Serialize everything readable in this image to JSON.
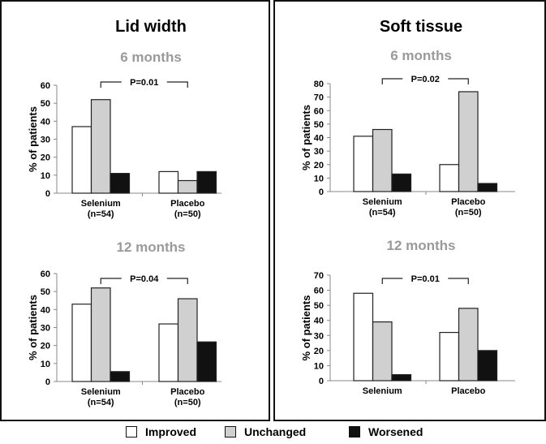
{
  "legend": [
    {
      "label": "Improved",
      "color": "#ffffff"
    },
    {
      "label": "Unchanged",
      "color": "#d0d0d0"
    },
    {
      "label": "Worsened",
      "color": "#111111"
    }
  ],
  "panels": [
    {
      "title": "Lid width",
      "charts": [
        0,
        1
      ]
    },
    {
      "title": "Soft tissue",
      "charts": [
        2,
        3
      ]
    }
  ],
  "chart_data": [
    {
      "type": "bar",
      "title": "6 months",
      "ylabel": "% of patients",
      "ylim": [
        0,
        60
      ],
      "yticks": [
        0,
        10,
        20,
        30,
        40,
        50,
        60
      ],
      "categories": [
        "Selenium\n(n=54)",
        "Placebo\n(n=50)"
      ],
      "annotation": "P=0.01",
      "series": [
        {
          "name": "Improved",
          "values": [
            37,
            12
          ]
        },
        {
          "name": "Unchanged",
          "values": [
            52,
            7
          ]
        },
        {
          "name": "Worsened",
          "values": [
            11,
            12
          ]
        }
      ]
    },
    {
      "type": "bar",
      "title": "12 months",
      "ylabel": "% of patients",
      "ylim": [
        0,
        60
      ],
      "yticks": [
        0,
        10,
        20,
        30,
        40,
        50,
        60
      ],
      "categories": [
        "Selenium\n(n=54)",
        "Placebo\n(n=50)"
      ],
      "annotation": "P=0.04",
      "series": [
        {
          "name": "Improved",
          "values": [
            43,
            32
          ]
        },
        {
          "name": "Unchanged",
          "values": [
            52,
            46
          ]
        },
        {
          "name": "Worsened",
          "values": [
            5.5,
            22
          ]
        }
      ]
    },
    {
      "type": "bar",
      "title": "6 months",
      "ylabel": "% of patients",
      "ylim": [
        0,
        80
      ],
      "yticks": [
        0,
        10,
        20,
        30,
        40,
        50,
        60,
        70,
        80
      ],
      "categories": [
        "Selenium\n(n=54)",
        "Placebo\n(n=50)"
      ],
      "annotation": "P=0.02",
      "series": [
        {
          "name": "Improved",
          "values": [
            41,
            20
          ]
        },
        {
          "name": "Unchanged",
          "values": [
            46,
            74
          ]
        },
        {
          "name": "Worsened",
          "values": [
            13,
            6
          ]
        }
      ]
    },
    {
      "type": "bar",
      "title": "12 months",
      "ylabel": "% of patients",
      "ylim": [
        0,
        70
      ],
      "yticks": [
        0,
        10,
        20,
        30,
        40,
        50,
        60,
        70
      ],
      "categories": [
        "Selenium",
        "Placebo"
      ],
      "annotation": "P=0.01",
      "series": [
        {
          "name": "Improved",
          "values": [
            58,
            32
          ]
        },
        {
          "name": "Unchanged",
          "values": [
            39,
            48
          ]
        },
        {
          "name": "Worsened",
          "values": [
            4,
            20
          ]
        }
      ]
    }
  ]
}
